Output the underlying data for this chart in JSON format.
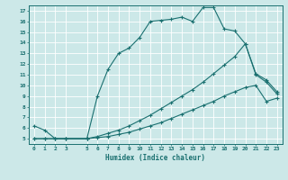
{
  "xlabel": "Humidex (Indice chaleur)",
  "bg_color": "#cce8e8",
  "line_color": "#1a7070",
  "grid_color": "#b0d4d4",
  "xlim": [
    -0.5,
    23.5
  ],
  "ylim": [
    4.5,
    17.5
  ],
  "xticks": [
    0,
    1,
    2,
    3,
    5,
    6,
    7,
    8,
    9,
    10,
    11,
    12,
    13,
    14,
    15,
    16,
    17,
    18,
    19,
    20,
    21,
    22,
    23
  ],
  "yticks": [
    5,
    6,
    7,
    8,
    9,
    10,
    11,
    12,
    13,
    14,
    15,
    16,
    17
  ],
  "line1_x": [
    0,
    1,
    2,
    3,
    5,
    6,
    7,
    8,
    9,
    10,
    11,
    12,
    13,
    14,
    15,
    16,
    17,
    18,
    19,
    20,
    21,
    22,
    23
  ],
  "line1_y": [
    6.2,
    5.8,
    5.0,
    5.0,
    5.0,
    9.0,
    11.5,
    13.0,
    13.5,
    14.5,
    16.0,
    16.1,
    16.2,
    16.4,
    16.0,
    17.3,
    17.3,
    15.3,
    15.1,
    13.9,
    11.0,
    10.3,
    9.2
  ],
  "line2_x": [
    0,
    1,
    2,
    3,
    5,
    6,
    7,
    8,
    9,
    10,
    11,
    12,
    13,
    14,
    15,
    16,
    17,
    18,
    19,
    20,
    21,
    22,
    23
  ],
  "line2_y": [
    5.0,
    5.0,
    5.0,
    5.0,
    5.0,
    5.2,
    5.5,
    5.8,
    6.2,
    6.7,
    7.2,
    7.8,
    8.4,
    9.0,
    9.6,
    10.3,
    11.1,
    11.9,
    12.7,
    13.9,
    11.1,
    10.5,
    9.4
  ],
  "line3_x": [
    0,
    1,
    2,
    3,
    5,
    6,
    7,
    8,
    9,
    10,
    11,
    12,
    13,
    14,
    15,
    16,
    17,
    18,
    19,
    20,
    21,
    22,
    23
  ],
  "line3_y": [
    5.0,
    5.0,
    5.0,
    5.0,
    5.0,
    5.1,
    5.2,
    5.4,
    5.6,
    5.9,
    6.2,
    6.5,
    6.9,
    7.3,
    7.7,
    8.1,
    8.5,
    9.0,
    9.4,
    9.8,
    10.0,
    8.5,
    8.8
  ]
}
